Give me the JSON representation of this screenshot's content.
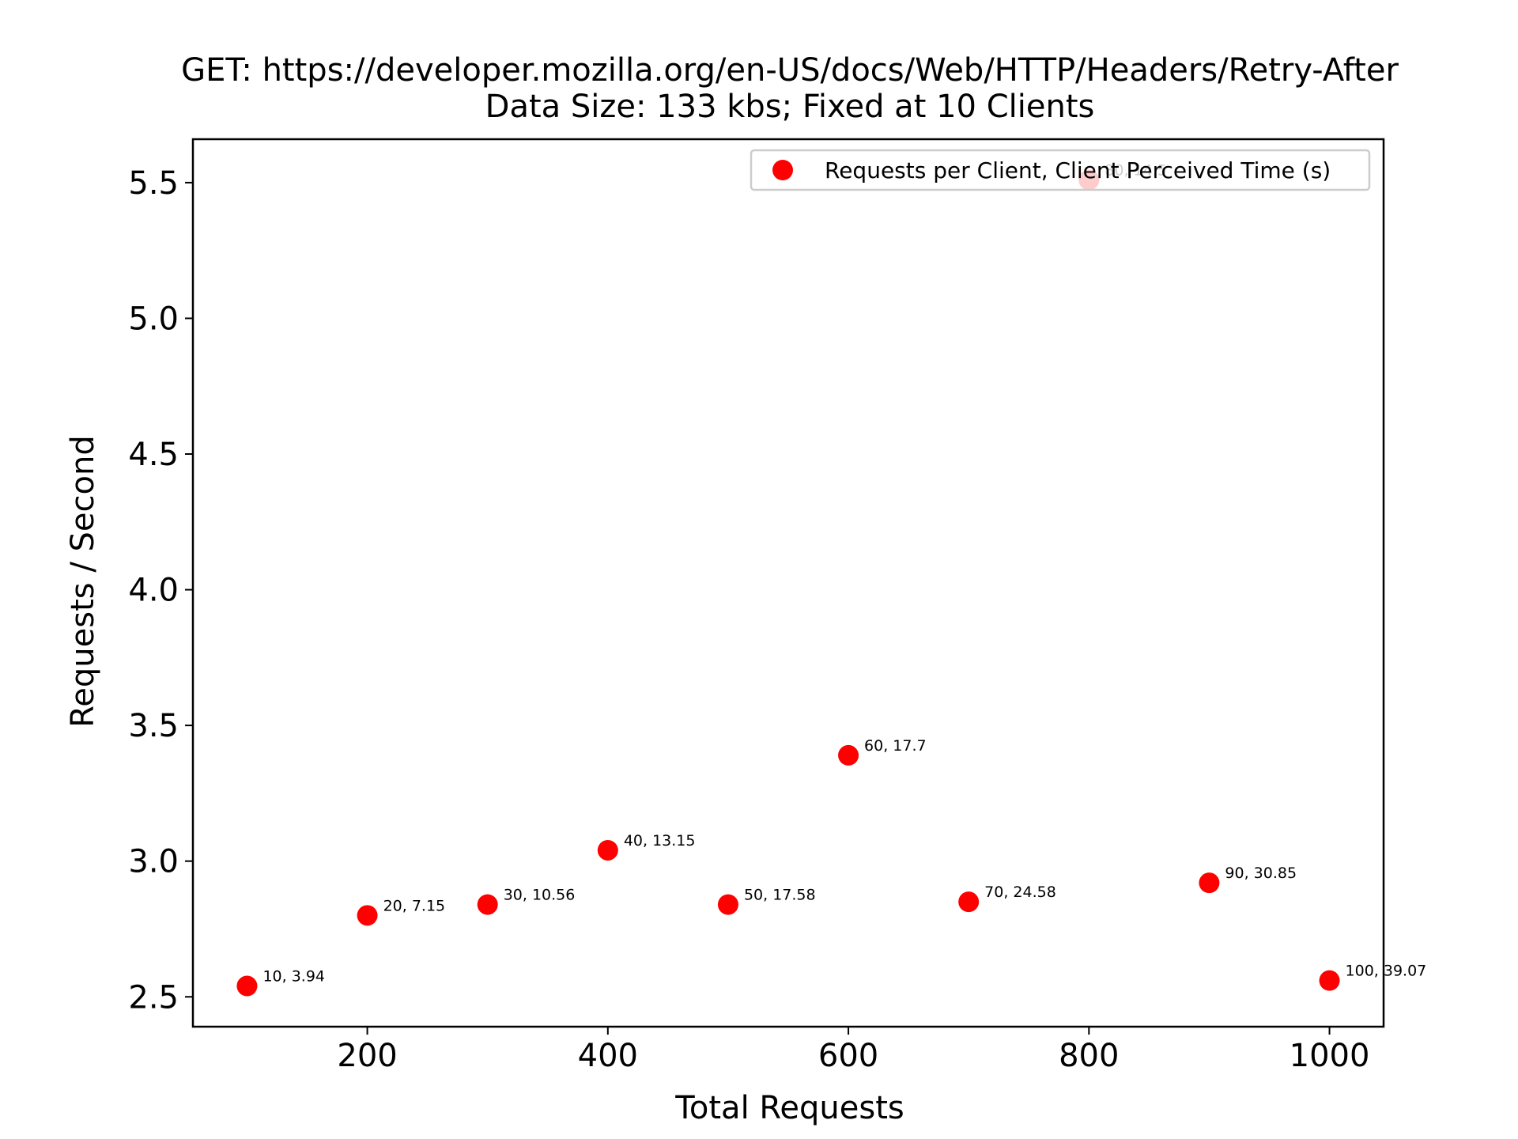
{
  "chart_data": {
    "type": "scatter",
    "title": [
      "GET: https://developer.mozilla.org/en-US/docs/Web/HTTP/Headers/Retry-After",
      "Data Size: 133 kbs; Fixed at 10 Clients"
    ],
    "xlabel": "Total Requests",
    "ylabel": "Requests / Second",
    "xlim": [
      55,
      1045
    ],
    "ylim": [
      2.39,
      5.66
    ],
    "xticks": [
      200,
      400,
      600,
      800,
      1000
    ],
    "yticks": [
      2.5,
      3.0,
      3.5,
      4.0,
      4.5,
      5.0,
      5.5
    ],
    "xtick_labels": [
      "200",
      "400",
      "600",
      "800",
      "1000"
    ],
    "ytick_labels": [
      "2.5",
      "3.0",
      "3.5",
      "4.0",
      "4.5",
      "5.0",
      "5.5"
    ],
    "grid": false,
    "legend": {
      "position": "upper right"
    },
    "series": [
      {
        "name": "Requests per Client, Client Perceived Time (s)",
        "color": "#ff0000",
        "marker": "circle",
        "x": [
          100,
          200,
          300,
          400,
          500,
          600,
          700,
          800,
          900,
          1000
        ],
        "y": [
          2.54,
          2.8,
          2.84,
          3.04,
          2.84,
          3.39,
          2.85,
          5.51,
          2.92,
          2.56
        ],
        "labels": [
          "10, 3.94",
          "20, 7.15",
          "30, 10.56",
          "40, 13.15",
          "50, 17.58",
          "60, 17.7",
          "70, 24.58",
          "80, 14.5",
          "90, 30.85",
          "100, 39.07"
        ]
      }
    ]
  }
}
